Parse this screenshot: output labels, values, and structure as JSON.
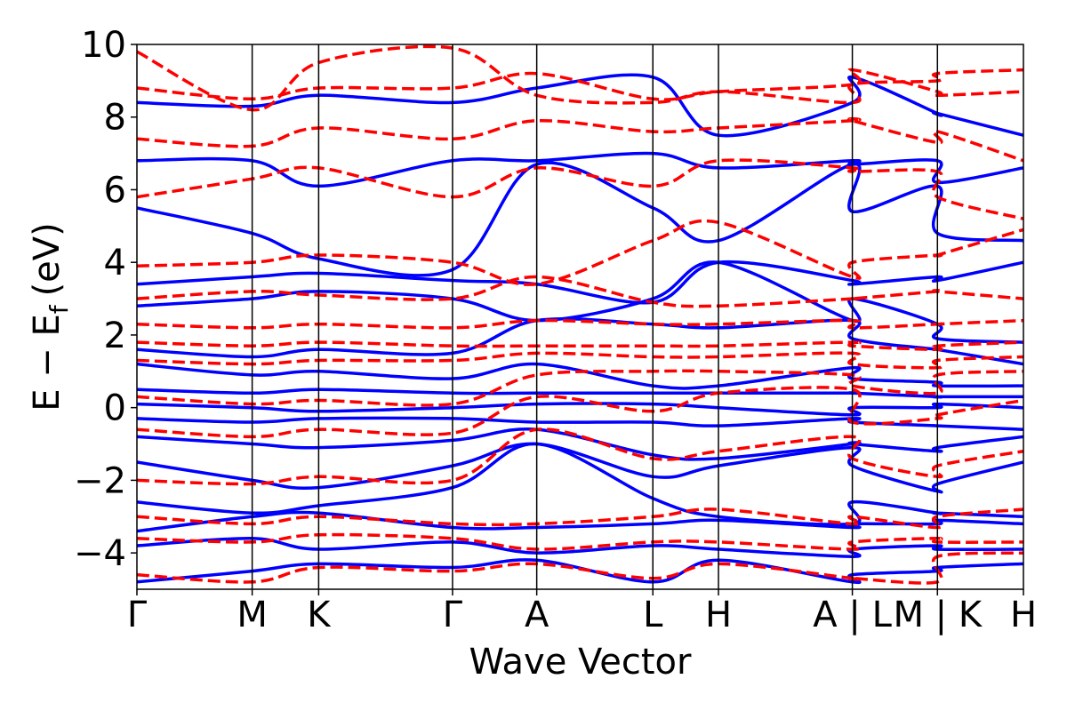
{
  "chart_data": {
    "type": "line",
    "xlabel": "Wave Vector",
    "ylabel": "E − E",
    "ylabel_subscript": "f",
    "ylabel_unit": "(eV)",
    "ylim": [
      -5,
      10
    ],
    "yticks": [
      -4,
      -2,
      0,
      2,
      4,
      6,
      8,
      10
    ],
    "ytick_labels": [
      "−4",
      "−2",
      "0",
      "2",
      "4",
      "6",
      "8",
      "10"
    ],
    "xlim": [
      0,
      1
    ],
    "kpoints": [
      {
        "pos": 0.0,
        "label": "Γ"
      },
      {
        "pos": 0.13,
        "label": "M"
      },
      {
        "pos": 0.205,
        "label": "K"
      },
      {
        "pos": 0.356,
        "label": "Γ"
      },
      {
        "pos": 0.451,
        "label": "A"
      },
      {
        "pos": 0.582,
        "label": "L"
      },
      {
        "pos": 0.656,
        "label": "H"
      },
      {
        "pos": 0.807,
        "label": "A | L"
      },
      {
        "pos": 0.903,
        "label": "M | K"
      },
      {
        "pos": 1.0,
        "label": "H"
      }
    ],
    "grid": false,
    "legend": "none",
    "series": [
      {
        "style": "solid",
        "color": "#0000ff",
        "bands": [
          {
            "x": [
              0,
              0.13,
              0.205,
              0.356,
              0.451,
              0.582,
              0.656,
              0.807,
              0.807,
              0.903,
              0.903,
              1
            ],
            "y": [
              -4.8,
              -4.5,
              -4.3,
              -4.4,
              -4.2,
              -4.8,
              -4.2,
              -4.8,
              -4.6,
              -4.5,
              -4.4,
              -4.3
            ]
          },
          {
            "x": [
              0,
              0.13,
              0.205,
              0.356,
              0.451,
              0.582,
              0.656,
              0.807,
              0.807,
              0.903,
              0.903,
              1
            ],
            "y": [
              -3.8,
              -3.6,
              -3.9,
              -3.7,
              -4.0,
              -3.8,
              -3.9,
              -4.1,
              -3.9,
              -3.8,
              -3.9,
              -3.9
            ]
          },
          {
            "x": [
              0,
              0.13,
              0.205,
              0.356,
              0.451,
              0.582,
              0.656,
              0.807,
              0.807,
              0.903,
              0.903,
              1
            ],
            "y": [
              -3.4,
              -3.0,
              -2.9,
              -3.3,
              -3.3,
              -3.2,
              -3.1,
              -3.3,
              -3.2,
              -3.2,
              -3.1,
              -3.2
            ]
          },
          {
            "x": [
              0,
              0.13,
              0.205,
              0.356,
              0.451,
              0.582,
              0.656,
              0.807,
              0.807,
              0.903,
              0.903,
              1
            ],
            "y": [
              -2.6,
              -2.9,
              -2.7,
              -2.2,
              -1.0,
              -2.5,
              -3.0,
              -3.2,
              -2.6,
              -2.9,
              -2.9,
              -3.0
            ]
          },
          {
            "x": [
              0,
              0.13,
              0.205,
              0.356,
              0.451,
              0.582,
              0.656,
              0.807,
              0.807,
              0.903,
              0.903,
              1
            ],
            "y": [
              -1.5,
              -2.0,
              -2.2,
              -1.6,
              -1.0,
              -1.9,
              -1.6,
              -1.1,
              -1.6,
              -2.3,
              -2.1,
              -1.5
            ]
          },
          {
            "x": [
              0,
              0.13,
              0.205,
              0.356,
              0.451,
              0.582,
              0.656,
              0.807,
              0.807,
              0.903,
              0.903,
              1
            ],
            "y": [
              -0.8,
              -1.0,
              -1.1,
              -0.9,
              -0.6,
              -1.3,
              -1.4,
              -1.0,
              -1.0,
              -1.2,
              -1.1,
              -0.8
            ]
          },
          {
            "x": [
              0,
              0.13,
              0.205,
              0.356,
              0.451,
              0.582,
              0.656,
              0.807,
              0.807,
              0.903,
              0.903,
              1
            ],
            "y": [
              -0.3,
              -0.4,
              -0.3,
              -0.3,
              -0.4,
              -0.4,
              -0.5,
              -0.3,
              -0.4,
              -0.5,
              -0.5,
              -0.6
            ]
          },
          {
            "x": [
              0,
              0.13,
              0.205,
              0.356,
              0.451,
              0.582,
              0.656,
              0.807,
              0.807,
              0.903,
              0.903,
              1
            ],
            "y": [
              0.1,
              0.0,
              -0.1,
              0.0,
              0.1,
              0.1,
              0.0,
              -0.2,
              0.0,
              0.0,
              0.1,
              0.0
            ]
          },
          {
            "x": [
              0,
              0.13,
              0.205,
              0.356,
              0.451,
              0.582,
              0.656,
              0.807,
              0.807,
              0.903,
              0.903,
              1
            ],
            "y": [
              0.5,
              0.4,
              0.5,
              0.4,
              0.4,
              0.4,
              0.4,
              0.4,
              0.4,
              0.3,
              0.3,
              0.3
            ]
          },
          {
            "x": [
              0,
              0.13,
              0.205,
              0.356,
              0.451,
              0.582,
              0.656,
              0.807,
              0.807,
              0.903,
              0.903,
              1
            ],
            "y": [
              1.2,
              0.9,
              1.0,
              0.8,
              1.2,
              0.6,
              0.6,
              1.1,
              0.8,
              0.7,
              0.6,
              0.6
            ]
          },
          {
            "x": [
              0,
              0.13,
              0.205,
              0.356,
              0.451,
              0.582,
              0.656,
              0.807,
              0.807,
              0.903,
              0.903,
              1
            ],
            "y": [
              1.6,
              1.4,
              1.6,
              1.5,
              2.4,
              2.3,
              2.2,
              2.4,
              1.9,
              1.6,
              1.6,
              1.2
            ]
          },
          {
            "x": [
              0,
              0.13,
              0.205,
              0.356,
              0.451,
              0.582,
              0.656,
              0.807,
              0.807,
              0.903,
              0.903,
              1
            ],
            "y": [
              2.8,
              3.0,
              3.2,
              3.0,
              2.4,
              3.0,
              4.0,
              2.4,
              3.0,
              2.3,
              1.9,
              1.8
            ]
          },
          {
            "x": [
              0,
              0.13,
              0.205,
              0.356,
              0.451,
              0.582,
              0.656,
              0.807,
              0.807,
              0.903,
              0.903,
              1
            ],
            "y": [
              3.4,
              3.6,
              3.7,
              3.5,
              3.4,
              2.9,
              4.0,
              3.5,
              3.4,
              3.6,
              3.5,
              4.0
            ]
          },
          {
            "x": [
              0,
              0.13,
              0.205,
              0.356,
              0.451,
              0.582,
              0.656,
              0.807,
              0.807,
              0.903,
              0.903,
              1
            ],
            "y": [
              5.5,
              4.8,
              4.1,
              3.8,
              6.7,
              5.5,
              4.6,
              6.7,
              5.4,
              6.1,
              4.8,
              4.6
            ]
          },
          {
            "x": [
              0,
              0.13,
              0.205,
              0.356,
              0.451,
              0.582,
              0.656,
              0.807,
              0.807,
              0.903,
              0.903,
              1
            ],
            "y": [
              6.8,
              6.8,
              6.1,
              6.8,
              6.8,
              7.0,
              6.6,
              6.8,
              6.7,
              6.8,
              6.2,
              6.6
            ]
          },
          {
            "x": [
              0,
              0.13,
              0.205,
              0.356,
              0.451,
              0.582,
              0.656,
              0.807,
              0.807,
              0.903,
              0.903,
              1
            ],
            "y": [
              8.4,
              8.3,
              8.6,
              8.4,
              8.8,
              9.1,
              7.5,
              8.4,
              9.1,
              8.1,
              8.1,
              7.5
            ]
          }
        ]
      },
      {
        "style": "dashed",
        "color": "#ff0000",
        "bands": [
          {
            "x": [
              0,
              0.13,
              0.205,
              0.356,
              0.451,
              0.582,
              0.656,
              0.807,
              0.807,
              0.903,
              0.903,
              1
            ],
            "y": [
              -4.6,
              -4.8,
              -4.4,
              -4.5,
              -4.3,
              -4.7,
              -4.3,
              -4.7,
              -4.7,
              -4.8,
              -4.1,
              -4.0
            ]
          },
          {
            "x": [
              0,
              0.13,
              0.205,
              0.356,
              0.451,
              0.582,
              0.656,
              0.807,
              0.807,
              0.903,
              0.903,
              1
            ],
            "y": [
              -3.6,
              -3.7,
              -3.5,
              -3.6,
              -3.9,
              -3.7,
              -3.7,
              -3.9,
              -3.7,
              -3.6,
              -3.7,
              -3.7
            ]
          },
          {
            "x": [
              0,
              0.13,
              0.205,
              0.356,
              0.451,
              0.582,
              0.656,
              0.807,
              0.807,
              0.903,
              0.903,
              1
            ],
            "y": [
              -3.0,
              -3.2,
              -3.0,
              -3.2,
              -3.2,
              -3.0,
              -2.8,
              -3.2,
              -3.0,
              -3.3,
              -3.0,
              -2.8
            ]
          },
          {
            "x": [
              0,
              0.13,
              0.205,
              0.356,
              0.451,
              0.582,
              0.656,
              0.807,
              0.807,
              0.903,
              0.903,
              1
            ],
            "y": [
              -2.0,
              -2.1,
              -1.9,
              -2.0,
              -0.6,
              -1.4,
              -1.2,
              -0.8,
              -1.4,
              -1.9,
              -1.6,
              -1.2
            ]
          },
          {
            "x": [
              0,
              0.13,
              0.205,
              0.356,
              0.451,
              0.582,
              0.656,
              0.807,
              0.807,
              0.903,
              0.903,
              1
            ],
            "y": [
              -0.6,
              -0.8,
              -0.6,
              -0.7,
              0.3,
              -0.1,
              0.4,
              0.5,
              -0.4,
              -0.3,
              -0.2,
              0.2
            ]
          },
          {
            "x": [
              0,
              0.13,
              0.205,
              0.356,
              0.451,
              0.582,
              0.656,
              0.807,
              0.807,
              0.903,
              0.903,
              1
            ],
            "y": [
              0.3,
              0.1,
              0.2,
              0.1,
              0.9,
              1.0,
              1.0,
              0.9,
              0.6,
              0.4,
              0.9,
              1.0
            ]
          },
          {
            "x": [
              0,
              0.13,
              0.205,
              0.356,
              0.451,
              0.582,
              0.656,
              0.807,
              0.807,
              0.903,
              0.903,
              1
            ],
            "y": [
              1.3,
              1.2,
              1.3,
              1.3,
              1.5,
              1.4,
              1.4,
              1.5,
              1.2,
              1.1,
              1.3,
              1.4
            ]
          },
          {
            "x": [
              0,
              0.13,
              0.205,
              0.356,
              0.451,
              0.582,
              0.656,
              0.807,
              0.807,
              0.903,
              0.903,
              1
            ],
            "y": [
              1.8,
              1.7,
              1.8,
              1.7,
              1.7,
              1.7,
              1.7,
              1.8,
              1.7,
              1.6,
              1.7,
              1.8
            ]
          },
          {
            "x": [
              0,
              0.13,
              0.205,
              0.356,
              0.451,
              0.582,
              0.656,
              0.807,
              0.807,
              0.903,
              0.903,
              1
            ],
            "y": [
              2.3,
              2.2,
              2.3,
              2.2,
              2.4,
              2.3,
              2.3,
              2.4,
              2.2,
              2.3,
              2.3,
              2.4
            ]
          },
          {
            "x": [
              0,
              0.13,
              0.205,
              0.356,
              0.451,
              0.582,
              0.656,
              0.807,
              0.807,
              0.903,
              0.903,
              1
            ],
            "y": [
              3.0,
              3.2,
              3.1,
              3.0,
              3.6,
              2.9,
              2.8,
              3.0,
              3.0,
              3.2,
              3.2,
              3.0
            ]
          },
          {
            "x": [
              0,
              0.13,
              0.205,
              0.356,
              0.451,
              0.582,
              0.656,
              0.807,
              0.807,
              0.903,
              0.903,
              1
            ],
            "y": [
              3.9,
              4.0,
              4.2,
              4.0,
              3.4,
              4.6,
              5.1,
              3.6,
              4.0,
              4.2,
              4.2,
              4.9
            ]
          },
          {
            "x": [
              0,
              0.13,
              0.205,
              0.356,
              0.451,
              0.582,
              0.656,
              0.807,
              0.807,
              0.903,
              0.903,
              1
            ],
            "y": [
              5.8,
              6.3,
              6.6,
              5.8,
              6.6,
              6.1,
              6.8,
              6.6,
              6.5,
              6.5,
              5.8,
              5.2
            ]
          },
          {
            "x": [
              0,
              0.13,
              0.205,
              0.356,
              0.451,
              0.582,
              0.656,
              0.807,
              0.807,
              0.903,
              0.903,
              1
            ],
            "y": [
              7.4,
              7.2,
              7.7,
              7.4,
              7.9,
              7.6,
              7.7,
              7.9,
              7.9,
              7.3,
              7.6,
              6.8
            ]
          },
          {
            "x": [
              0,
              0.13,
              0.205,
              0.356,
              0.451,
              0.582,
              0.656,
              0.807,
              0.807,
              0.903,
              0.903,
              1
            ],
            "y": [
              8.8,
              8.5,
              8.8,
              8.8,
              9.2,
              8.5,
              8.7,
              8.9,
              9.3,
              8.7,
              8.6,
              8.7
            ]
          },
          {
            "x": [
              0,
              0.13,
              0.205,
              0.356,
              0.451,
              0.582,
              0.656,
              0.807,
              0.807,
              0.903,
              0.903,
              1
            ],
            "y": [
              9.8,
              8.2,
              9.5,
              9.9,
              8.6,
              8.4,
              8.7,
              8.4,
              8.9,
              9.0,
              9.2,
              9.3
            ]
          }
        ]
      }
    ]
  }
}
